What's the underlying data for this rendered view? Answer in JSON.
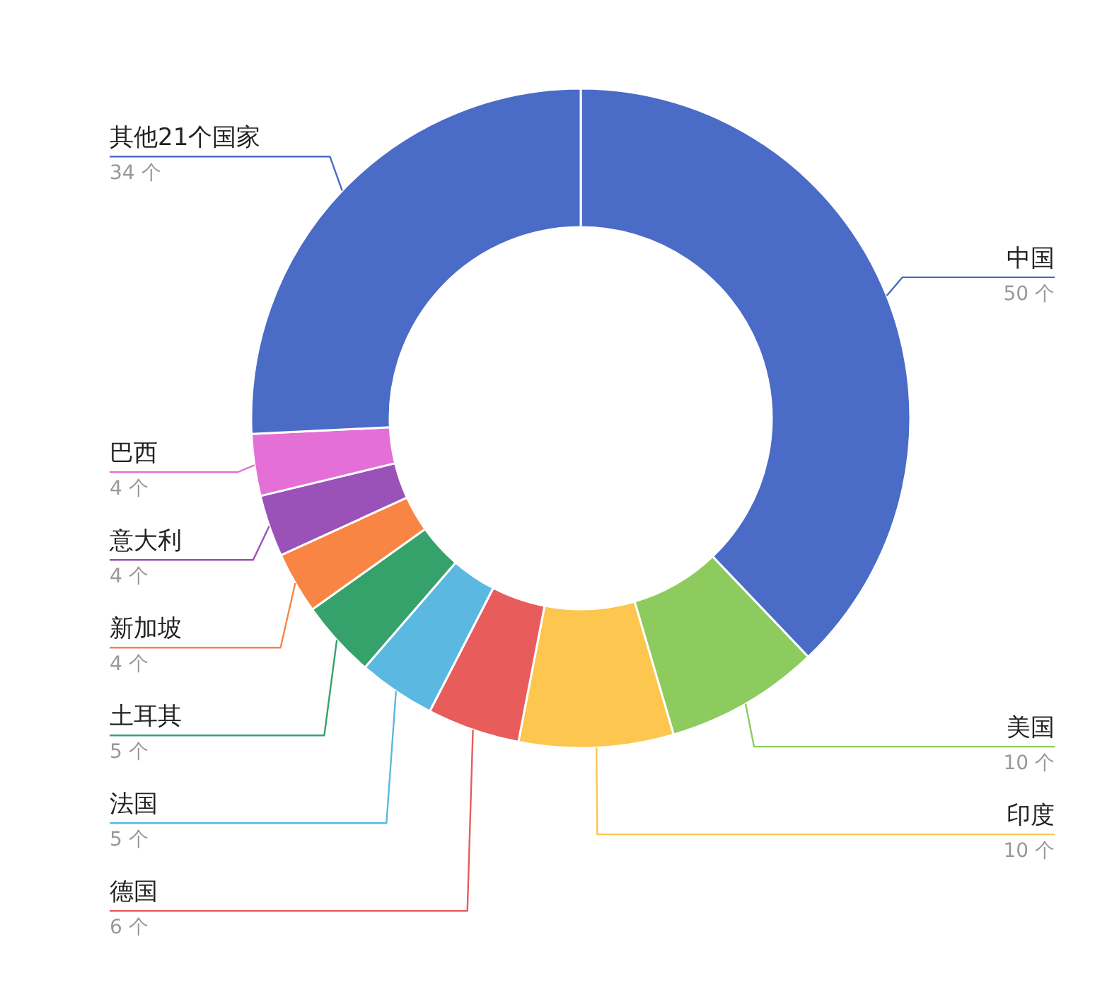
{
  "chart_data": {
    "type": "donut",
    "categories": [
      "中国",
      "美国",
      "印度",
      "德国",
      "法国",
      "土耳其",
      "新加坡",
      "意大利",
      "巴西",
      "其他21个国家"
    ],
    "values": [
      50,
      10,
      10,
      6,
      5,
      5,
      4,
      4,
      4,
      34
    ],
    "value_labels": [
      "50 个",
      "10 个",
      "10 个",
      "6 个",
      "5 个",
      "5 个",
      "4 个",
      "4 个",
      "4 个",
      "34 个"
    ],
    "colors": [
      "#4a6bc6",
      "#8ecb5f",
      "#fcc64f",
      "#e85c5c",
      "#5bb8e0",
      "#35a26c",
      "#f98544",
      "#9a52b8",
      "#e46fd7",
      "#4a6bc6"
    ]
  }
}
